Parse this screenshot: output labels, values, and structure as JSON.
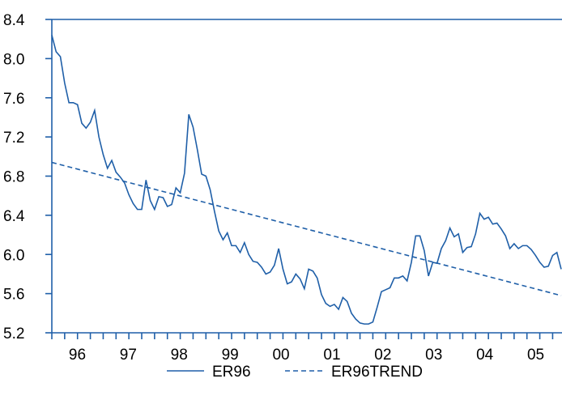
{
  "chart_data": {
    "type": "line",
    "title": "",
    "xlabel": "",
    "ylabel": "",
    "ylim": [
      5.2,
      8.4
    ],
    "yticks": [
      "5.2",
      "5.6",
      "6.0",
      "6.4",
      "6.8",
      "7.2",
      "7.6",
      "8.0",
      "8.4"
    ],
    "xticks": [
      "96",
      "97",
      "98",
      "99",
      "00",
      "01",
      "02",
      "03",
      "04",
      "05"
    ],
    "x_range": [
      "1996-01",
      "2005-12"
    ],
    "grid": false,
    "legend_position": "bottom",
    "colors": {
      "axis": "#1f5fa8",
      "series": "#1f5fa8"
    },
    "series": [
      {
        "name": "ER96",
        "style": "solid",
        "x": [
          "1996-01",
          "1996-02",
          "1996-03",
          "1996-04",
          "1996-05",
          "1996-06",
          "1996-07",
          "1996-08",
          "1996-09",
          "1996-10",
          "1996-11",
          "1996-12",
          "1997-01",
          "1997-02",
          "1997-03",
          "1997-04",
          "1997-05",
          "1997-06",
          "1997-07",
          "1997-08",
          "1997-09",
          "1997-10",
          "1997-11",
          "1997-12",
          "1998-01",
          "1998-02",
          "1998-03",
          "1998-04",
          "1998-05",
          "1998-06",
          "1998-07",
          "1998-08",
          "1998-09",
          "1998-10",
          "1998-11",
          "1998-12",
          "1999-01",
          "1999-02",
          "1999-03",
          "1999-04",
          "1999-05",
          "1999-06",
          "1999-07",
          "1999-08",
          "1999-09",
          "1999-10",
          "1999-11",
          "1999-12",
          "2000-01",
          "2000-02",
          "2000-03",
          "2000-04",
          "2000-05",
          "2000-06",
          "2000-07",
          "2000-08",
          "2000-09",
          "2000-10",
          "2000-11",
          "2000-12",
          "2001-01",
          "2001-02",
          "2001-03",
          "2001-04",
          "2001-05",
          "2001-06",
          "2001-07",
          "2001-08",
          "2001-09",
          "2001-10",
          "2001-11",
          "2001-12",
          "2002-01",
          "2002-02",
          "2002-03",
          "2002-04",
          "2002-05",
          "2002-06",
          "2002-07",
          "2002-08",
          "2002-09",
          "2002-10",
          "2002-11",
          "2002-12",
          "2003-01",
          "2003-02",
          "2003-03",
          "2003-04",
          "2003-05",
          "2003-06",
          "2003-07",
          "2003-08",
          "2003-09",
          "2003-10",
          "2003-11",
          "2003-12",
          "2004-01",
          "2004-02",
          "2004-03",
          "2004-04",
          "2004-05",
          "2004-06",
          "2004-07",
          "2004-08",
          "2004-09",
          "2004-10",
          "2004-11",
          "2004-12",
          "2005-01",
          "2005-02",
          "2005-03",
          "2005-04",
          "2005-05",
          "2005-06",
          "2005-07",
          "2005-08",
          "2005-09",
          "2005-10",
          "2005-11",
          "2005-12"
        ],
        "values": [
          8.24,
          8.07,
          8.02,
          7.75,
          7.55,
          7.55,
          7.53,
          7.34,
          7.29,
          7.35,
          7.47,
          7.2,
          7.02,
          6.88,
          6.96,
          6.84,
          6.79,
          6.73,
          6.61,
          6.52,
          6.46,
          6.46,
          6.76,
          6.55,
          6.46,
          6.59,
          6.58,
          6.49,
          6.51,
          6.68,
          6.63,
          6.83,
          7.43,
          7.3,
          7.07,
          6.82,
          6.8,
          6.66,
          6.44,
          6.24,
          6.15,
          6.22,
          6.09,
          6.09,
          6.02,
          6.12,
          6.0,
          5.93,
          5.92,
          5.87,
          5.8,
          5.82,
          5.89,
          6.06,
          5.85,
          5.7,
          5.72,
          5.8,
          5.75,
          5.65,
          5.85,
          5.83,
          5.76,
          5.59,
          5.5,
          5.47,
          5.49,
          5.44,
          5.56,
          5.52,
          5.4,
          5.34,
          5.3,
          5.29,
          5.29,
          5.31,
          5.46,
          5.62,
          5.64,
          5.66,
          5.76,
          5.76,
          5.78,
          5.73,
          5.92,
          6.19,
          6.19,
          6.04,
          5.78,
          5.92,
          5.91,
          6.06,
          6.14,
          6.27,
          6.18,
          6.21,
          6.02,
          6.07,
          6.08,
          6.21,
          6.42,
          6.36,
          6.38,
          6.31,
          6.32,
          6.26,
          6.19,
          6.06,
          6.11,
          6.06,
          6.09,
          6.09,
          6.05,
          5.99,
          5.92,
          5.87,
          5.88,
          5.99,
          6.02,
          5.85
        ]
      },
      {
        "name": "ER96TREND",
        "style": "dashed",
        "x": [
          "1996-01",
          "2005-12"
        ],
        "values": [
          6.94,
          5.58
        ]
      }
    ]
  }
}
